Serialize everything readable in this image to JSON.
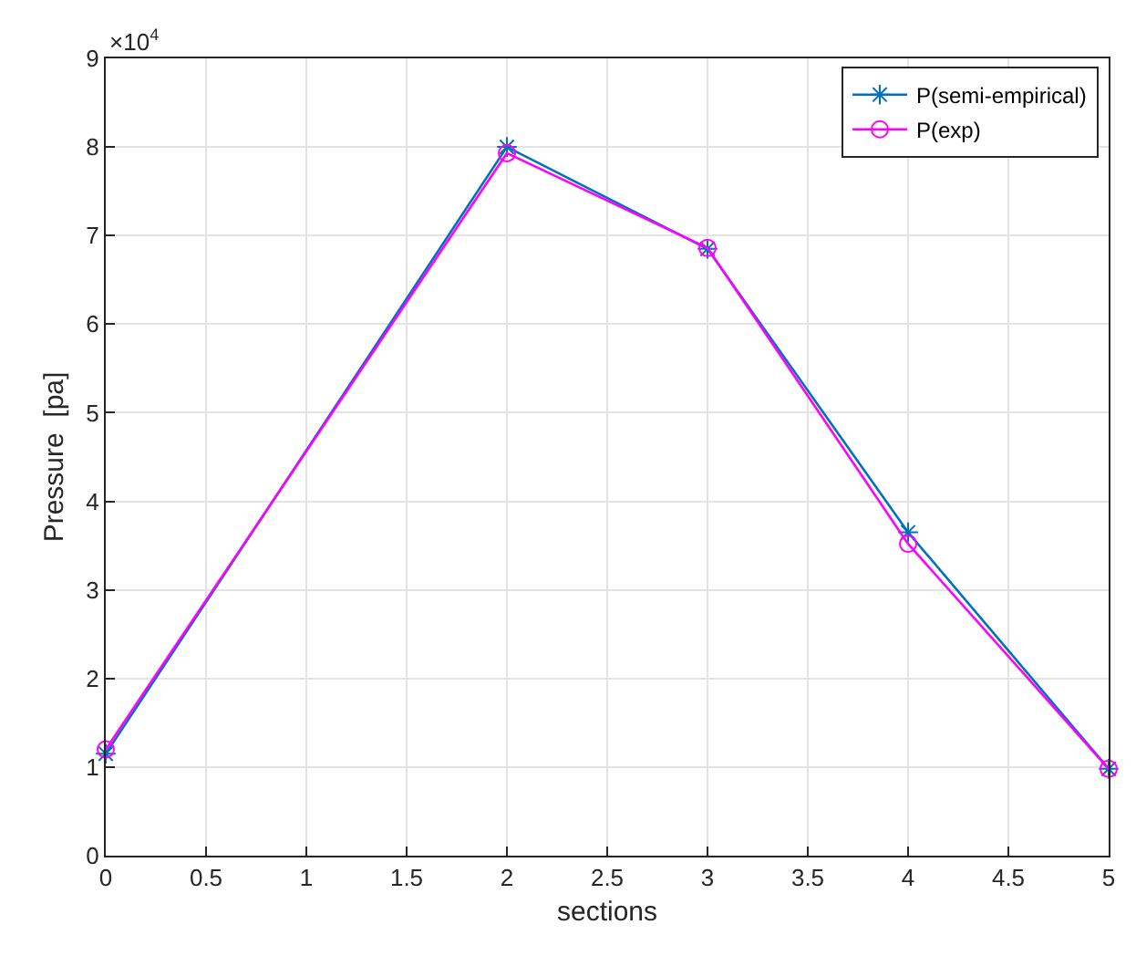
{
  "chart_data": {
    "type": "line",
    "xlabel": "sections",
    "ylabel": "Pressure  [pa]",
    "annotations": [
      "×10$^{4}$"
    ],
    "x": [
      0,
      2,
      3,
      4,
      5
    ],
    "series": [
      {
        "name": "P(semi-empirical)",
        "color": "#0072bd",
        "marker": "cross",
        "values": [
          1.15,
          8.0,
          6.85,
          3.65,
          0.98
        ]
      },
      {
        "name": "P(exp)",
        "color": "#ff00ff",
        "marker": "circle",
        "values": [
          1.2,
          7.93,
          6.86,
          3.52,
          0.98
        ]
      }
    ],
    "xlim": [
      0,
      5
    ],
    "xticks": [
      0,
      0.5,
      1,
      1.5,
      2,
      2.5,
      3,
      3.5,
      4,
      4.5,
      5
    ],
    "ylim": [
      0,
      9
    ],
    "yticks": [
      0,
      1,
      2,
      3,
      4,
      5,
      6,
      7,
      8,
      9
    ],
    "grid": true,
    "legend": "top right",
    "line_style": "solid"
  }
}
